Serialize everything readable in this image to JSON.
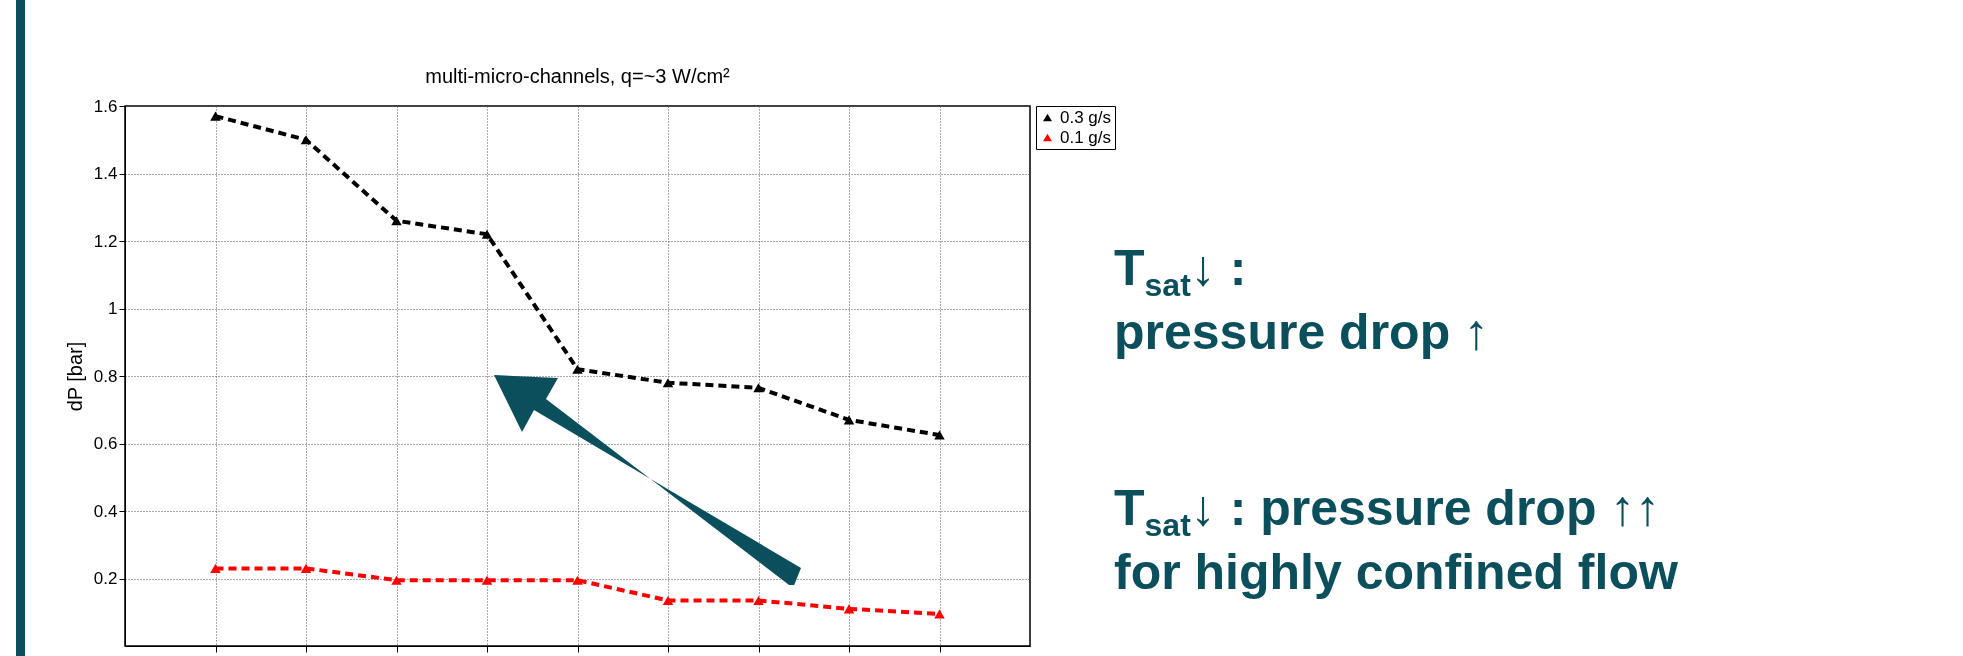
{
  "chart_data": {
    "type": "line",
    "title": "multi-micro-channels, q=~3 W/cm²",
    "ylabel": "dP [bar]",
    "categories": [
      null,
      null,
      null,
      null,
      null,
      null,
      null,
      null,
      null
    ],
    "series": [
      {
        "name": "0.3 g/s",
        "color": "#000000",
        "values": [
          1.57,
          1.5,
          1.26,
          1.22,
          0.82,
          0.78,
          0.765,
          0.67,
          0.625
        ]
      },
      {
        "name": "0.1 g/s",
        "color": "#ff0000",
        "values": [
          0.23,
          0.23,
          0.195,
          0.195,
          0.195,
          0.135,
          0.135,
          0.11,
          0.095
        ]
      }
    ],
    "ylim": [
      0,
      1.6
    ],
    "yticks": [
      0.2,
      0.4,
      0.6,
      0.8,
      1,
      1.2,
      1.4,
      1.6
    ],
    "grid": true,
    "legend": "top right",
    "marker": "triangle",
    "line_style": "dashed",
    "tick_labels": "y",
    "annotations": [
      "T$_{sat}$↓ :\npressure drop ↑",
      "T$_{sat}$↓ : pressure drop ↑↑\nfor highly confined flow"
    ]
  }
}
